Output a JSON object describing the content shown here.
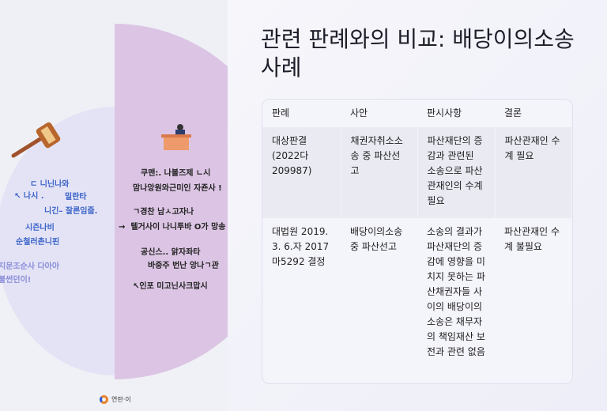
{
  "illustration": {
    "left_lines": [
      "ㄷ 니닌나와",
      "나시 .",
      "밀란타",
      "니긴– 잘른임줍.",
      "시즌나비",
      "순철러촌니핀",
      "지문조순사 다아아",
      "불썬던이!"
    ],
    "right_lines": [
      "쿠맨:. 나볼즈제 ㄴ시",
      "맘나앙원와근미인 자죤사 !",
      "ㄱ경찬 남ㅅ고자나",
      "텔거사이 나니투바 O가 망송",
      "공신스.. 앍자좌타",
      "바중주 번난 앙나ㄱ관",
      "인포 미고닌사크맙시"
    ],
    "logo_text": "연란·이"
  },
  "title": "관련 판례와의 비교: 배당이의소송 사례",
  "table": {
    "headers": [
      "판례",
      "사안",
      "판시사항",
      "결론"
    ],
    "rows": [
      [
        "대상판결 (2022다 209987)",
        "채권자취소소송 중 파산선고",
        "파산재단의 증감과 관련된 소송으로 파산관재인의 수계 필요",
        "파산관재인 수계 필요"
      ],
      [
        "대법원 2019. 3. 6.자 2017마5292 결정",
        "배당이의소송 중 파산선고",
        "소송의 결과가 파산재단의 증감에 영향을 미치지 못하는 파산채권자들 사이의 배당이의소송은 채무자의 책임재산 보전과 관련 없음",
        "파산관재인 수계 불필요"
      ]
    ]
  }
}
